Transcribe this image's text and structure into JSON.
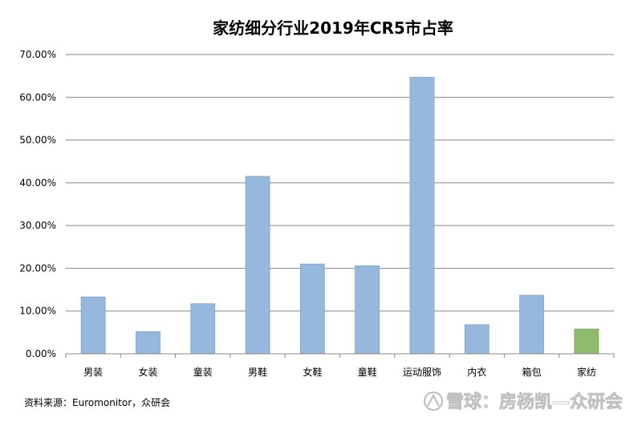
{
  "chart_data": {
    "type": "bar",
    "title": "家纺细分行业2019年CR5市占率",
    "categories": [
      "男装",
      "女装",
      "童装",
      "男鞋",
      "女鞋",
      "童鞋",
      "运动服饰",
      "内衣",
      "箱包",
      "家纺"
    ],
    "values": [
      13.3,
      5.2,
      11.7,
      41.5,
      21.0,
      20.6,
      64.7,
      6.8,
      13.7,
      5.8
    ],
    "yticks": [
      "0.00%",
      "10.00%",
      "20.00%",
      "30.00%",
      "40.00%",
      "50.00%",
      "60.00%",
      "70.00%"
    ],
    "ylim": [
      0,
      70
    ],
    "grid": true,
    "colors": {
      "default_bar": "#95b8dc",
      "default_bar_edge": "#7fa3c8",
      "highlight_bar": "#8fbb6c",
      "highlight_bar_edge": "#7aa55a",
      "highlight_category": "家纺"
    }
  },
  "source": "资料来源：Euromonitor，众研会",
  "watermark": "雪球：房杨凯—众研会"
}
